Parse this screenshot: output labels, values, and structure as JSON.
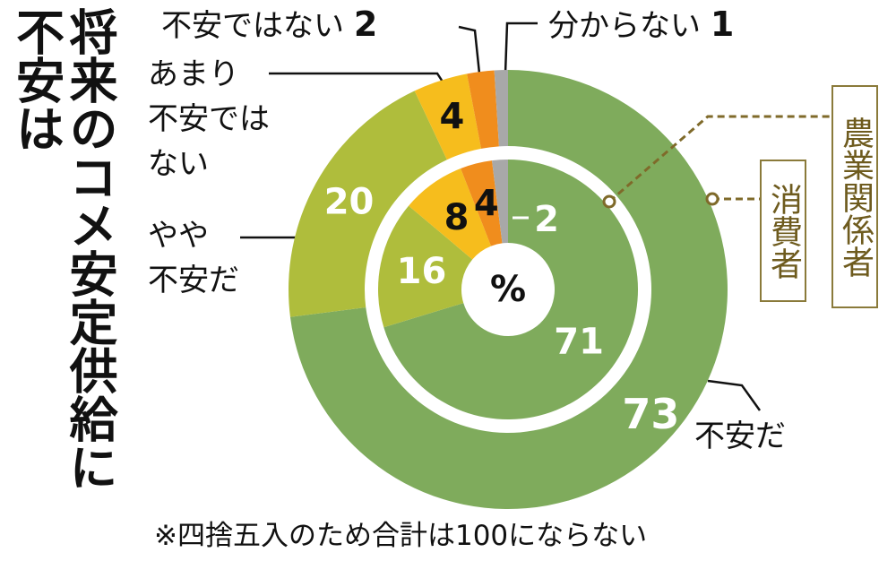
{
  "chart_data": {
    "type": "donut",
    "title": "将来のコメ安定供給に不安は",
    "unit": "%",
    "note": "※四捨五入のため合計は100にならない",
    "categories": [
      "不安だ",
      "やや\n不安だ",
      "あまり\n不安では\nない",
      "不安ではない",
      "分からない"
    ],
    "colors": [
      "#7fab5c",
      "#afbd3c",
      "#f6bd1d",
      "#f08d1d",
      "#a8a8a8"
    ],
    "series": [
      {
        "name": "農業関係者",
        "values": [
          71,
          16,
          8,
          4,
          2
        ]
      },
      {
        "name": "消費者",
        "values": [
          73,
          20,
          4,
          2,
          1
        ]
      }
    ]
  }
}
